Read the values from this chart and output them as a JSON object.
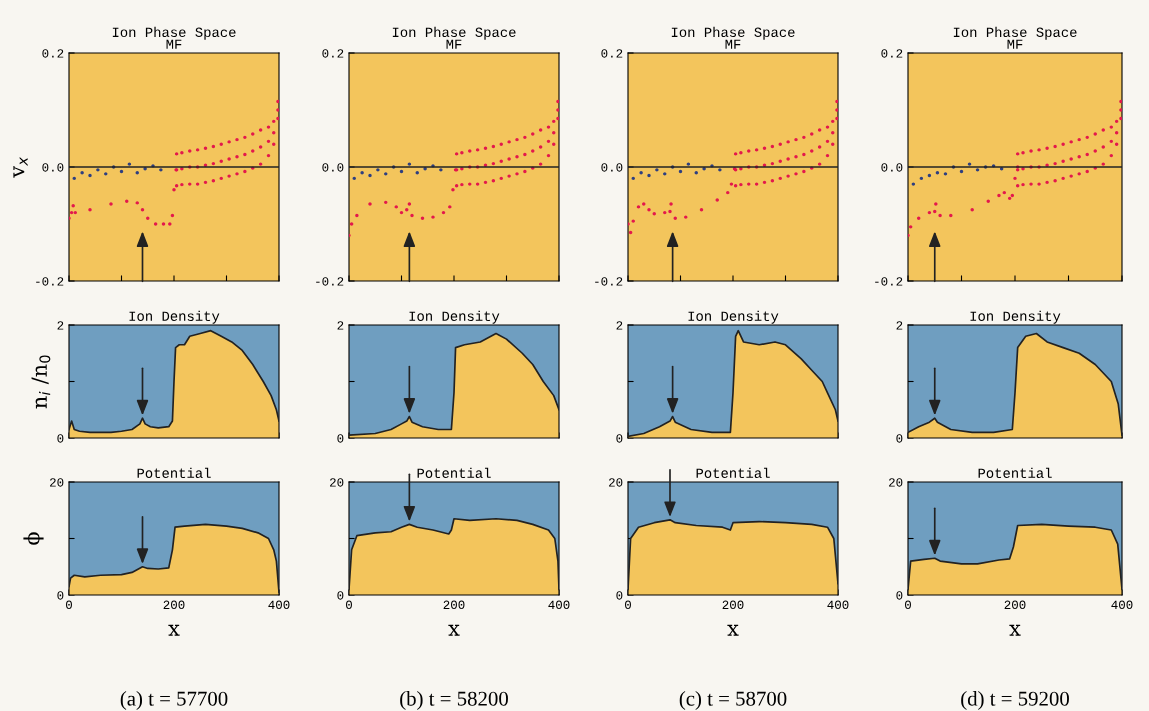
{
  "chart_data": [
    {
      "type": "scatter",
      "title": "Ion Phase Space\nMF",
      "ylabel": "v$_{x}$",
      "marker": "circle",
      "xlim": [
        0,
        400
      ],
      "ylim": [
        -0.2,
        0.2
      ],
      "tick_labels": "y",
      "xticks": [
        {
          "value": 0,
          "label": null
        },
        {
          "value": 100,
          "label": null
        },
        {
          "value": 200,
          "label": null
        },
        {
          "value": 300,
          "label": null
        },
        {
          "value": 400,
          "label": null
        }
      ],
      "yticks": [
        {
          "value": -0.2,
          "label": "-0.2"
        },
        {
          "value": 0,
          "label": "0.0"
        },
        {
          "value": 0.2,
          "label": "0.2"
        }
      ],
      "ref_lines": [
        {
          "axis": "y",
          "value": 0
        }
      ],
      "series": [
        {
          "color": "#e3184c",
          "x": [
            0,
            5,
            8,
            12,
            40,
            80,
            110,
            130,
            140,
            150,
            165,
            180,
            192,
            197,
            200,
            204,
            205,
            215,
            230,
            245,
            260,
            275,
            290,
            305,
            320,
            335,
            350,
            365,
            380,
            390,
            398,
            205,
            215,
            230,
            245,
            260,
            275,
            290,
            305,
            320,
            335,
            350,
            365,
            380,
            390,
            398,
            205,
            215,
            230,
            245,
            260,
            275,
            290,
            305,
            320,
            335,
            350,
            365,
            380,
            390,
            398
          ],
          "values": [
            -0.09,
            -0.08,
            -0.068,
            -0.08,
            -0.075,
            -0.065,
            -0.06,
            -0.063,
            -0.075,
            -0.09,
            -0.1,
            -0.1,
            -0.1,
            -0.085,
            -0.04,
            -0.005,
            -0.005,
            -0.003,
            0.0,
            0.0,
            0.003,
            0.006,
            0.01,
            0.014,
            0.018,
            0.022,
            0.028,
            0.035,
            0.045,
            0.06,
            0.1,
            0.023,
            0.025,
            0.028,
            0.03,
            0.033,
            0.036,
            0.04,
            0.044,
            0.048,
            0.052,
            0.058,
            0.065,
            0.07,
            0.08,
            0.115,
            -0.033,
            -0.031,
            -0.03,
            -0.03,
            -0.027,
            -0.024,
            -0.02,
            -0.016,
            -0.012,
            -0.008,
            -0.002,
            0.005,
            0.02,
            0.04,
            0.085
          ]
        },
        {
          "color": "#2e3f80",
          "x": [
            10,
            25,
            40,
            55,
            70,
            85,
            100,
            115,
            130,
            145,
            160,
            175
          ],
          "values": [
            -0.02,
            -0.01,
            -0.015,
            -0.005,
            -0.012,
            0.0,
            -0.008,
            0.005,
            -0.01,
            -0.003,
            0.002,
            -0.005
          ]
        }
      ]
    },
    {
      "type": "scatter",
      "title": "Ion Phase Space\nMF",
      "marker": "circle",
      "xlim": [
        0,
        400
      ],
      "ylim": [
        -0.2,
        0.2
      ],
      "tick_labels": "y",
      "xticks": [
        {
          "value": 0,
          "label": null
        },
        {
          "value": 100,
          "label": null
        },
        {
          "value": 200,
          "label": null
        },
        {
          "value": 300,
          "label": null
        },
        {
          "value": 400,
          "label": null
        }
      ],
      "yticks": [
        {
          "value": -0.2,
          "label": "-0.2"
        },
        {
          "value": 0,
          "label": "0.0"
        },
        {
          "value": 0.2,
          "label": "0.2"
        }
      ],
      "ref_lines": [
        {
          "axis": "y",
          "value": 0
        }
      ],
      "series": [
        {
          "color": "#e3184c",
          "x": [
            0,
            5,
            15,
            40,
            70,
            90,
            100,
            110,
            115,
            120,
            140,
            160,
            180,
            192,
            198,
            203,
            205,
            215,
            230,
            245,
            260,
            275,
            290,
            305,
            320,
            335,
            350,
            365,
            380,
            390,
            398,
            205,
            215,
            230,
            245,
            260,
            275,
            290,
            305,
            320,
            335,
            350,
            365,
            380,
            390,
            398,
            205,
            215,
            230,
            245,
            260,
            275,
            290,
            305,
            320,
            335,
            350,
            365,
            380,
            390,
            398
          ],
          "values": [
            -0.12,
            -0.1,
            -0.085,
            -0.065,
            -0.062,
            -0.07,
            -0.08,
            -0.075,
            -0.065,
            -0.085,
            -0.09,
            -0.088,
            -0.08,
            -0.07,
            -0.04,
            -0.005,
            -0.005,
            -0.003,
            0.0,
            0.0,
            0.003,
            0.006,
            0.01,
            0.014,
            0.018,
            0.022,
            0.028,
            0.035,
            0.045,
            0.06,
            0.1,
            0.023,
            0.025,
            0.028,
            0.03,
            0.033,
            0.036,
            0.04,
            0.044,
            0.048,
            0.052,
            0.058,
            0.065,
            0.07,
            0.08,
            0.115,
            -0.033,
            -0.031,
            -0.03,
            -0.03,
            -0.027,
            -0.024,
            -0.02,
            -0.016,
            -0.012,
            -0.008,
            -0.002,
            0.005,
            0.02,
            0.04,
            0.085
          ]
        },
        {
          "color": "#2e3f80",
          "x": [
            10,
            25,
            40,
            55,
            70,
            85,
            100,
            115,
            130,
            145,
            160,
            175
          ],
          "values": [
            -0.02,
            -0.01,
            -0.015,
            -0.005,
            -0.012,
            0.0,
            -0.008,
            0.005,
            -0.01,
            -0.003,
            0.002,
            -0.005
          ]
        }
      ]
    },
    {
      "type": "scatter",
      "title": "Ion Phase Space\nMF",
      "marker": "circle",
      "xlim": [
        0,
        400
      ],
      "ylim": [
        -0.2,
        0.2
      ],
      "tick_labels": "y",
      "xticks": [
        {
          "value": 0,
          "label": null
        },
        {
          "value": 100,
          "label": null
        },
        {
          "value": 200,
          "label": null
        },
        {
          "value": 300,
          "label": null
        },
        {
          "value": 400,
          "label": null
        }
      ],
      "yticks": [
        {
          "value": -0.2,
          "label": "-0.2"
        },
        {
          "value": 0,
          "label": "0.0"
        },
        {
          "value": 0.2,
          "label": "0.2"
        }
      ],
      "ref_lines": [
        {
          "axis": "y",
          "value": 0
        }
      ],
      "series": [
        {
          "color": "#e3184c",
          "x": [
            0,
            5,
            10,
            20,
            30,
            40,
            50,
            70,
            80,
            82,
            90,
            110,
            140,
            170,
            190,
            197,
            203,
            205,
            215,
            230,
            245,
            260,
            275,
            290,
            305,
            320,
            335,
            350,
            365,
            380,
            390,
            398,
            205,
            215,
            230,
            245,
            260,
            275,
            290,
            305,
            320,
            335,
            350,
            365,
            380,
            390,
            398,
            205,
            215,
            230,
            245,
            260,
            275,
            290,
            305,
            320,
            335,
            350,
            365,
            380,
            390,
            398
          ],
          "values": [
            -0.1,
            -0.115,
            -0.095,
            -0.07,
            -0.065,
            -0.075,
            -0.082,
            -0.08,
            -0.078,
            -0.065,
            -0.09,
            -0.088,
            -0.075,
            -0.058,
            -0.045,
            -0.03,
            -0.003,
            -0.005,
            -0.003,
            0.0,
            0.0,
            0.003,
            0.006,
            0.01,
            0.014,
            0.018,
            0.022,
            0.028,
            0.035,
            0.045,
            0.06,
            0.1,
            0.023,
            0.025,
            0.028,
            0.03,
            0.033,
            0.036,
            0.04,
            0.044,
            0.048,
            0.052,
            0.058,
            0.065,
            0.07,
            0.08,
            0.115,
            -0.033,
            -0.031,
            -0.03,
            -0.03,
            -0.027,
            -0.024,
            -0.02,
            -0.016,
            -0.012,
            -0.008,
            -0.002,
            0.005,
            0.02,
            0.04,
            0.085
          ]
        },
        {
          "color": "#2e3f80",
          "x": [
            10,
            25,
            40,
            55,
            70,
            85,
            100,
            115,
            130,
            145,
            160,
            175
          ],
          "values": [
            -0.02,
            -0.01,
            -0.015,
            -0.005,
            -0.012,
            0.0,
            -0.008,
            0.005,
            -0.01,
            -0.003,
            0.002,
            -0.005
          ]
        }
      ]
    },
    {
      "type": "scatter",
      "title": "Ion Phase Space\nMF",
      "marker": "circle",
      "xlim": [
        0,
        400
      ],
      "ylim": [
        -0.2,
        0.2
      ],
      "tick_labels": "y",
      "xticks": [
        {
          "value": 0,
          "label": null
        },
        {
          "value": 100,
          "label": null
        },
        {
          "value": 200,
          "label": null
        },
        {
          "value": 300,
          "label": null
        },
        {
          "value": 400,
          "label": null
        }
      ],
      "yticks": [
        {
          "value": -0.2,
          "label": "-0.2"
        },
        {
          "value": 0,
          "label": "0.0"
        },
        {
          "value": 0.2,
          "label": "0.2"
        }
      ],
      "ref_lines": [
        {
          "axis": "y",
          "value": 0
        }
      ],
      "series": [
        {
          "color": "#e3184c",
          "x": [
            0,
            5,
            20,
            40,
            50,
            52,
            60,
            80,
            120,
            150,
            170,
            180,
            190,
            195,
            200,
            205,
            205,
            215,
            230,
            245,
            260,
            275,
            290,
            305,
            320,
            335,
            350,
            365,
            380,
            390,
            398,
            205,
            215,
            230,
            245,
            260,
            275,
            290,
            305,
            320,
            335,
            350,
            365,
            380,
            390,
            398,
            205,
            215,
            230,
            245,
            260,
            275,
            290,
            305,
            320,
            335,
            350,
            365,
            380,
            390,
            398
          ],
          "values": [
            -0.12,
            -0.105,
            -0.09,
            -0.08,
            -0.078,
            -0.065,
            -0.085,
            -0.085,
            -0.075,
            -0.06,
            -0.05,
            -0.045,
            -0.055,
            -0.05,
            -0.02,
            0.0,
            -0.005,
            -0.003,
            0.0,
            0.0,
            0.003,
            0.006,
            0.01,
            0.014,
            0.018,
            0.022,
            0.028,
            0.035,
            0.045,
            0.06,
            0.1,
            0.023,
            0.025,
            0.028,
            0.03,
            0.033,
            0.036,
            0.04,
            0.044,
            0.048,
            0.052,
            0.058,
            0.065,
            0.07,
            0.08,
            0.115,
            -0.033,
            -0.031,
            -0.03,
            -0.03,
            -0.027,
            -0.024,
            -0.02,
            -0.016,
            -0.012,
            -0.008,
            -0.002,
            0.005,
            0.02,
            0.04,
            0.085
          ]
        },
        {
          "color": "#2e3f80",
          "x": [
            10,
            25,
            40,
            55,
            70,
            85,
            100,
            115,
            130,
            145,
            160,
            175
          ],
          "values": [
            -0.03,
            -0.02,
            -0.015,
            -0.01,
            -0.012,
            0.0,
            -0.008,
            0.005,
            -0.005,
            0.0,
            0.002,
            -0.003
          ]
        }
      ]
    },
    {
      "type": "area",
      "title": "Ion Density",
      "ylabel": "n$_{i}$ /n$_{0}$",
      "xlim": [
        0,
        400
      ],
      "ylim": [
        0,
        2
      ],
      "tick_labels": "y",
      "xticks": [
        {
          "value": 0,
          "label": null
        },
        {
          "value": 100,
          "label": null
        },
        {
          "value": 200,
          "label": null
        },
        {
          "value": 300,
          "label": null
        },
        {
          "value": 400,
          "label": null
        }
      ],
      "yticks": [
        0,
        {
          "value": 1,
          "label": null
        },
        2
      ],
      "series": [
        {
          "color": "#f3c55c",
          "x": [
            0,
            5,
            10,
            20,
            40,
            60,
            80,
            100,
            120,
            135,
            140,
            145,
            155,
            170,
            190,
            197,
            200,
            203,
            210,
            220,
            230,
            250,
            270,
            290,
            310,
            330,
            350,
            370,
            385,
            395,
            400
          ],
          "values": [
            0.15,
            0.3,
            0.15,
            0.12,
            0.1,
            0.1,
            0.1,
            0.12,
            0.15,
            0.25,
            0.35,
            0.25,
            0.2,
            0.18,
            0.2,
            0.3,
            1.0,
            1.6,
            1.65,
            1.65,
            1.8,
            1.85,
            1.9,
            1.8,
            1.7,
            1.55,
            1.3,
            1.0,
            0.75,
            0.5,
            0.3
          ]
        }
      ]
    },
    {
      "type": "area",
      "title": "Ion Density",
      "xlim": [
        0,
        400
      ],
      "ylim": [
        0,
        2
      ],
      "tick_labels": "y",
      "xticks": [
        {
          "value": 0,
          "label": null
        },
        {
          "value": 100,
          "label": null
        },
        {
          "value": 200,
          "label": null
        },
        {
          "value": 300,
          "label": null
        },
        {
          "value": 400,
          "label": null
        }
      ],
      "yticks": [
        0,
        {
          "value": 1,
          "label": null
        },
        2
      ],
      "series": [
        {
          "color": "#f3c55c",
          "x": [
            0,
            50,
            80,
            100,
            110,
            115,
            120,
            140,
            170,
            195,
            200,
            203,
            220,
            250,
            280,
            300,
            330,
            350,
            370,
            390,
            400
          ],
          "values": [
            0.05,
            0.08,
            0.15,
            0.25,
            0.3,
            0.38,
            0.28,
            0.2,
            0.15,
            0.15,
            0.8,
            1.6,
            1.65,
            1.7,
            1.85,
            1.75,
            1.5,
            1.3,
            1.0,
            0.75,
            0.5
          ]
        }
      ]
    },
    {
      "type": "area",
      "title": "Ion Density",
      "xlim": [
        0,
        400
      ],
      "ylim": [
        0,
        2
      ],
      "tick_labels": "y",
      "xticks": [
        {
          "value": 0,
          "label": null
        },
        {
          "value": 100,
          "label": null
        },
        {
          "value": 200,
          "label": null
        },
        {
          "value": 300,
          "label": null
        },
        {
          "value": 400,
          "label": null
        }
      ],
      "yticks": [
        0,
        {
          "value": 1,
          "label": null
        },
        2
      ],
      "series": [
        {
          "color": "#f3c55c",
          "x": [
            0,
            30,
            60,
            80,
            85,
            90,
            120,
            160,
            195,
            200,
            205,
            210,
            220,
            250,
            280,
            300,
            330,
            350,
            370,
            380,
            395,
            400
          ],
          "values": [
            0.03,
            0.08,
            0.2,
            0.3,
            0.38,
            0.28,
            0.15,
            0.1,
            0.1,
            0.8,
            1.8,
            1.9,
            1.7,
            1.65,
            1.7,
            1.65,
            1.4,
            1.2,
            1.0,
            0.8,
            0.5,
            0.3
          ]
        }
      ]
    },
    {
      "type": "area",
      "title": "Ion Density",
      "xlim": [
        0,
        400
      ],
      "ylim": [
        0,
        2
      ],
      "tick_labels": "y",
      "xticks": [
        {
          "value": 0,
          "label": null
        },
        {
          "value": 100,
          "label": null
        },
        {
          "value": 200,
          "label": null
        },
        {
          "value": 300,
          "label": null
        },
        {
          "value": 400,
          "label": null
        }
      ],
      "yticks": [
        0,
        {
          "value": 1,
          "label": null
        },
        2
      ],
      "series": [
        {
          "color": "#f3c55c",
          "x": [
            0,
            20,
            40,
            50,
            55,
            80,
            120,
            160,
            195,
            200,
            205,
            220,
            240,
            260,
            290,
            320,
            350,
            380,
            393,
            400
          ],
          "values": [
            0.1,
            0.2,
            0.28,
            0.35,
            0.28,
            0.15,
            0.1,
            0.1,
            0.15,
            0.8,
            1.6,
            1.8,
            1.85,
            1.7,
            1.6,
            1.5,
            1.3,
            1.0,
            0.6,
            0.05
          ]
        }
      ]
    },
    {
      "type": "area",
      "bands": [
        {
          "axis": "y",
          "from": 0,
          "to": 20,
          "color": "#6f9ec0"
        }
      ],
      "title": "Potential",
      "ylabel": "ϕ",
      "xlabel": "x",
      "xlim": [
        0,
        400
      ],
      "ylim": [
        0,
        20
      ],
      "xticks": [
        0,
        {
          "value": 100,
          "label": null
        },
        200,
        {
          "value": 300,
          "label": null
        },
        400
      ],
      "yticks": [
        0,
        {
          "value": 10,
          "label": null
        },
        20
      ],
      "annotations": [
        "(a) t = 57700"
      ],
      "series": [
        {
          "color": "#f3c55c",
          "x": [
            0,
            3,
            10,
            30,
            60,
            100,
            120,
            140,
            150,
            170,
            190,
            197,
            202,
            220,
            260,
            300,
            330,
            360,
            380,
            390,
            395,
            400
          ],
          "values": [
            1.5,
            3,
            3.5,
            3.2,
            3.5,
            3.6,
            4,
            5,
            4.7,
            4.6,
            4.8,
            8,
            12,
            12.2,
            12.5,
            12.2,
            11.8,
            11,
            10,
            8,
            6,
            0.5
          ]
        }
      ]
    },
    {
      "type": "area",
      "title": "Potential",
      "xlabel": "x",
      "xlim": [
        0,
        400
      ],
      "ylim": [
        0,
        20
      ],
      "xticks": [
        0,
        {
          "value": 100,
          "label": null
        },
        200,
        {
          "value": 300,
          "label": null
        },
        400
      ],
      "yticks": [
        0,
        {
          "value": 10,
          "label": null
        },
        20
      ],
      "bands": [
        {
          "axis": "y",
          "from": 0,
          "to": 20,
          "color": "#6f9ec0"
        }
      ],
      "annotations": [
        "(b) t = 58200"
      ],
      "series": [
        {
          "color": "#f3c55c",
          "x": [
            0,
            5,
            15,
            50,
            80,
            100,
            115,
            130,
            160,
            190,
            195,
            200,
            230,
            280,
            320,
            350,
            380,
            392,
            398,
            400
          ],
          "values": [
            1,
            8,
            10.5,
            11,
            11.2,
            12,
            12.5,
            12,
            11.5,
            10.8,
            11.5,
            13.5,
            13.2,
            13.5,
            13.2,
            12.5,
            11.5,
            10,
            6,
            1
          ]
        }
      ]
    },
    {
      "type": "area",
      "title": "Potential",
      "xlabel": "x",
      "xlim": [
        0,
        400
      ],
      "ylim": [
        0,
        20
      ],
      "xticks": [
        0,
        {
          "value": 100,
          "label": null
        },
        200,
        {
          "value": 300,
          "label": null
        },
        400
      ],
      "yticks": [
        0,
        {
          "value": 10,
          "label": null
        },
        20
      ],
      "bands": [
        {
          "axis": "y",
          "from": 0,
          "to": 20,
          "color": "#6f9ec0"
        }
      ],
      "annotations": [
        "(c) t = 58700"
      ],
      "series": [
        {
          "color": "#f3c55c",
          "x": [
            0,
            5,
            20,
            50,
            80,
            90,
            130,
            180,
            195,
            200,
            250,
            300,
            350,
            380,
            392,
            400
          ],
          "values": [
            1,
            10,
            12,
            12.8,
            13.3,
            12.8,
            12.3,
            12,
            11.5,
            12.8,
            13,
            12.8,
            12.5,
            12,
            10,
            2
          ]
        }
      ]
    },
    {
      "type": "area",
      "title": "Potential",
      "xlabel": "x",
      "xlim": [
        0,
        400
      ],
      "ylim": [
        0,
        20
      ],
      "xticks": [
        0,
        {
          "value": 100,
          "label": null
        },
        200,
        {
          "value": 300,
          "label": null
        },
        400
      ],
      "yticks": [
        0,
        {
          "value": 10,
          "label": null
        },
        20
      ],
      "bands": [
        {
          "axis": "y",
          "from": 0,
          "to": 20,
          "color": "#6f9ec0"
        }
      ],
      "annotations": [
        "(d) t = 59200"
      ],
      "series": [
        {
          "color": "#f3c55c",
          "x": [
            0,
            5,
            30,
            50,
            60,
            100,
            130,
            170,
            190,
            197,
            205,
            250,
            300,
            350,
            380,
            392,
            400
          ],
          "values": [
            1,
            6,
            6.3,
            6.5,
            6,
            5.5,
            5.5,
            6.2,
            6.4,
            8.5,
            12.3,
            12.5,
            12.2,
            12,
            11.5,
            9,
            1
          ]
        }
      ]
    }
  ]
}
